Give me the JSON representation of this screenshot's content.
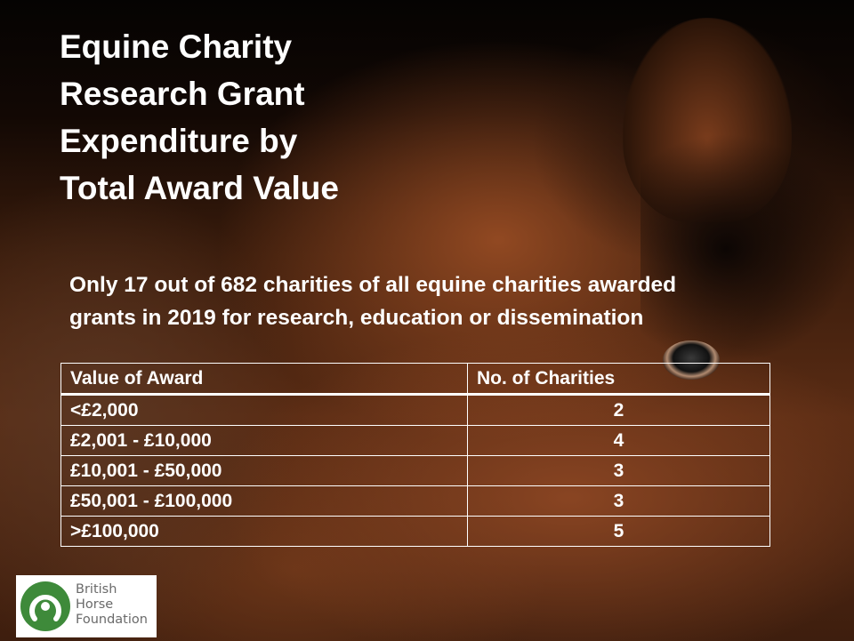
{
  "title": {
    "lines": [
      "Equine Charity",
      "Research Grant",
      "Expenditure by",
      "Total Award Value"
    ]
  },
  "subtitle": {
    "lines": [
      "Only 17 out of 682 charities of all equine charities awarded",
      "grants in 2019 for research, education or dissemination"
    ]
  },
  "table": {
    "header": [
      "Value of Award",
      "No. of Charities"
    ],
    "rows": [
      [
        "<£2,000",
        "2"
      ],
      [
        "£2,001 - £10,000",
        "4"
      ],
      [
        "£10,001 - £50,000",
        "3"
      ],
      [
        "£50,001 - £100,000",
        "3"
      ],
      [
        ">£100,000",
        "5"
      ]
    ]
  },
  "logo": {
    "lines": [
      "British",
      "Horse",
      "Foundation"
    ]
  }
}
